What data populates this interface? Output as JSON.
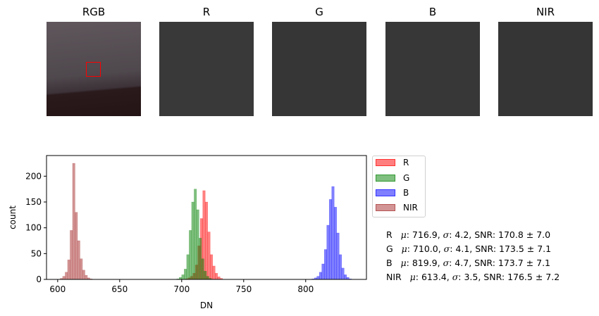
{
  "panels": [
    {
      "id": "rgb",
      "title": "RGB"
    },
    {
      "id": "r",
      "title": "R"
    },
    {
      "id": "g",
      "title": "G"
    },
    {
      "id": "b",
      "title": "B"
    },
    {
      "id": "nir",
      "title": "NIR"
    }
  ],
  "colors": {
    "R": "#ff0000",
    "G": "#008000",
    "B": "#0000ff",
    "NIR": "#a52a2a",
    "roi_box": "#ff0000"
  },
  "stats": [
    {
      "band": "R",
      "mu": "716.9",
      "sigma": "4.2",
      "snr": "170.8 ± 7.0"
    },
    {
      "band": "G",
      "mu": "710.0",
      "sigma": "4.1",
      "snr": "173.5 ± 7.1"
    },
    {
      "band": "B",
      "mu": "819.9",
      "sigma": "4.7",
      "snr": "173.7 ± 7.1"
    },
    {
      "band": "NIR",
      "mu": "613.4",
      "sigma": "3.5",
      "snr": "176.5 ± 7.2"
    }
  ],
  "chart_data": {
    "type": "histogram",
    "xlabel": "DN",
    "ylabel": "count",
    "xlim": [
      591,
      849
    ],
    "ylim": [
      0,
      240
    ],
    "xticks": [
      600,
      650,
      700,
      750,
      800
    ],
    "yticks": [
      0,
      50,
      100,
      150,
      200
    ],
    "legend_position": "outside-upper-right",
    "series": [
      {
        "name": "R",
        "color": "#ff0000",
        "bins": [
          [
            703,
            1
          ],
          [
            705,
            3
          ],
          [
            707,
            6
          ],
          [
            709,
            12
          ],
          [
            711,
            28
          ],
          [
            713,
            65
          ],
          [
            715,
            118
          ],
          [
            717,
            172
          ],
          [
            719,
            150
          ],
          [
            721,
            92
          ],
          [
            723,
            48
          ],
          [
            725,
            26
          ],
          [
            727,
            12
          ],
          [
            729,
            5
          ],
          [
            731,
            2
          ]
        ]
      },
      {
        "name": "G",
        "color": "#008000",
        "bins": [
          [
            696,
            1
          ],
          [
            698,
            4
          ],
          [
            700,
            9
          ],
          [
            702,
            20
          ],
          [
            704,
            48
          ],
          [
            706,
            95
          ],
          [
            708,
            150
          ],
          [
            710,
            175
          ],
          [
            712,
            135
          ],
          [
            714,
            80
          ],
          [
            716,
            40
          ],
          [
            718,
            16
          ],
          [
            720,
            6
          ],
          [
            722,
            2
          ]
        ]
      },
      {
        "name": "B",
        "color": "#0000ff",
        "bins": [
          [
            805,
            1
          ],
          [
            807,
            3
          ],
          [
            809,
            6
          ],
          [
            811,
            14
          ],
          [
            813,
            30
          ],
          [
            815,
            58
          ],
          [
            817,
            105
          ],
          [
            819,
            155
          ],
          [
            821,
            180
          ],
          [
            823,
            140
          ],
          [
            825,
            90
          ],
          [
            827,
            48
          ],
          [
            829,
            22
          ],
          [
            831,
            9
          ],
          [
            833,
            4
          ],
          [
            835,
            1
          ]
        ]
      },
      {
        "name": "NIR",
        "color": "#a52a2a",
        "bins": [
          [
            602,
            2
          ],
          [
            604,
            6
          ],
          [
            606,
            14
          ],
          [
            608,
            38
          ],
          [
            610,
            95
          ],
          [
            612,
            225
          ],
          [
            614,
            130
          ],
          [
            616,
            75
          ],
          [
            618,
            40
          ],
          [
            620,
            18
          ],
          [
            622,
            8
          ],
          [
            624,
            3
          ],
          [
            626,
            1
          ]
        ]
      }
    ]
  }
}
